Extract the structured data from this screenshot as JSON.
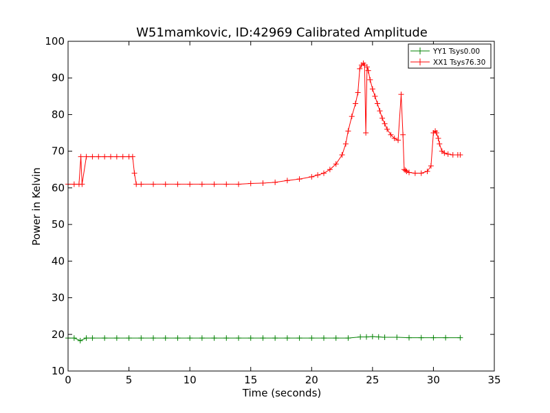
{
  "chart_data": {
    "type": "line",
    "title": "W51mamkovic, ID:42969 Calibrated Amplitude",
    "xlabel": "Time (seconds)",
    "ylabel": "Power in Kelvin",
    "xlim": [
      0,
      35
    ],
    "ylim": [
      10,
      100
    ],
    "xticks": [
      0,
      5,
      10,
      15,
      20,
      25,
      30,
      35
    ],
    "yticks": [
      10,
      20,
      30,
      40,
      50,
      60,
      70,
      80,
      90,
      100
    ],
    "grid": false,
    "legend_position": "top-right",
    "series": [
      {
        "name": "YY1 Tsys0.00",
        "color": "#008000",
        "marker": "+",
        "x": [
          0,
          0.5,
          1.0,
          1.5,
          2,
          3,
          4,
          5,
          6,
          7,
          8,
          9,
          10,
          11,
          12,
          13,
          14,
          15,
          16,
          17,
          18,
          19,
          20,
          21,
          22,
          23,
          24,
          24.5,
          25,
          25.5,
          26,
          27,
          28,
          29,
          30,
          31,
          32.2
        ],
        "y": [
          19,
          19,
          18.3,
          19,
          19,
          19,
          19,
          19,
          19,
          19,
          19,
          19,
          19,
          19,
          19,
          19,
          19,
          19,
          19,
          19,
          19,
          19,
          19,
          19,
          19,
          19,
          19.3,
          19.3,
          19.4,
          19.3,
          19.2,
          19.2,
          19.1,
          19.1,
          19.1,
          19.1,
          19.1
        ]
      },
      {
        "name": "XX1 Tsys76.30",
        "color": "#ff0000",
        "marker": "+",
        "x": [
          0,
          0.5,
          0.9,
          1.05,
          1.15,
          1.5,
          2,
          2.5,
          3,
          3.5,
          4,
          4.5,
          5,
          5.3,
          5.45,
          5.6,
          6,
          7,
          8,
          9,
          10,
          11,
          12,
          13,
          14,
          15,
          16,
          17,
          18,
          19,
          20,
          20.5,
          21,
          21.5,
          22,
          22.5,
          22.8,
          23,
          23.3,
          23.6,
          23.8,
          23.95,
          24.1,
          24.25,
          24.35,
          24.45,
          24.55,
          24.65,
          24.8,
          25,
          25.2,
          25.4,
          25.6,
          25.8,
          26,
          26.2,
          26.5,
          26.8,
          27.1,
          27.35,
          27.5,
          27.6,
          27.7,
          27.8,
          28,
          28.5,
          29,
          29.5,
          29.8,
          30,
          30.15,
          30.25,
          30.4,
          30.5,
          30.7,
          30.9,
          31.2,
          31.6,
          32,
          32.2
        ],
        "y": [
          61,
          61,
          61,
          68.5,
          61,
          68.5,
          68.5,
          68.5,
          68.5,
          68.5,
          68.5,
          68.5,
          68.5,
          68.5,
          64,
          61,
          61,
          61,
          61,
          61,
          61,
          61,
          61,
          61,
          61,
          61.2,
          61.3,
          61.5,
          62,
          62.4,
          63,
          63.5,
          64,
          65,
          66.5,
          69,
          72,
          75.5,
          79.5,
          83,
          86,
          92.5,
          93.5,
          94,
          93.5,
          75,
          93,
          92,
          89.5,
          87,
          85,
          83,
          81,
          79,
          77.5,
          76,
          74.5,
          73.5,
          73,
          85.5,
          74.5,
          65,
          64.8,
          64.5,
          64.2,
          64,
          64,
          64.5,
          66,
          75,
          75.5,
          75,
          73.5,
          72,
          70,
          69.5,
          69.2,
          69,
          69,
          69
        ]
      }
    ]
  }
}
